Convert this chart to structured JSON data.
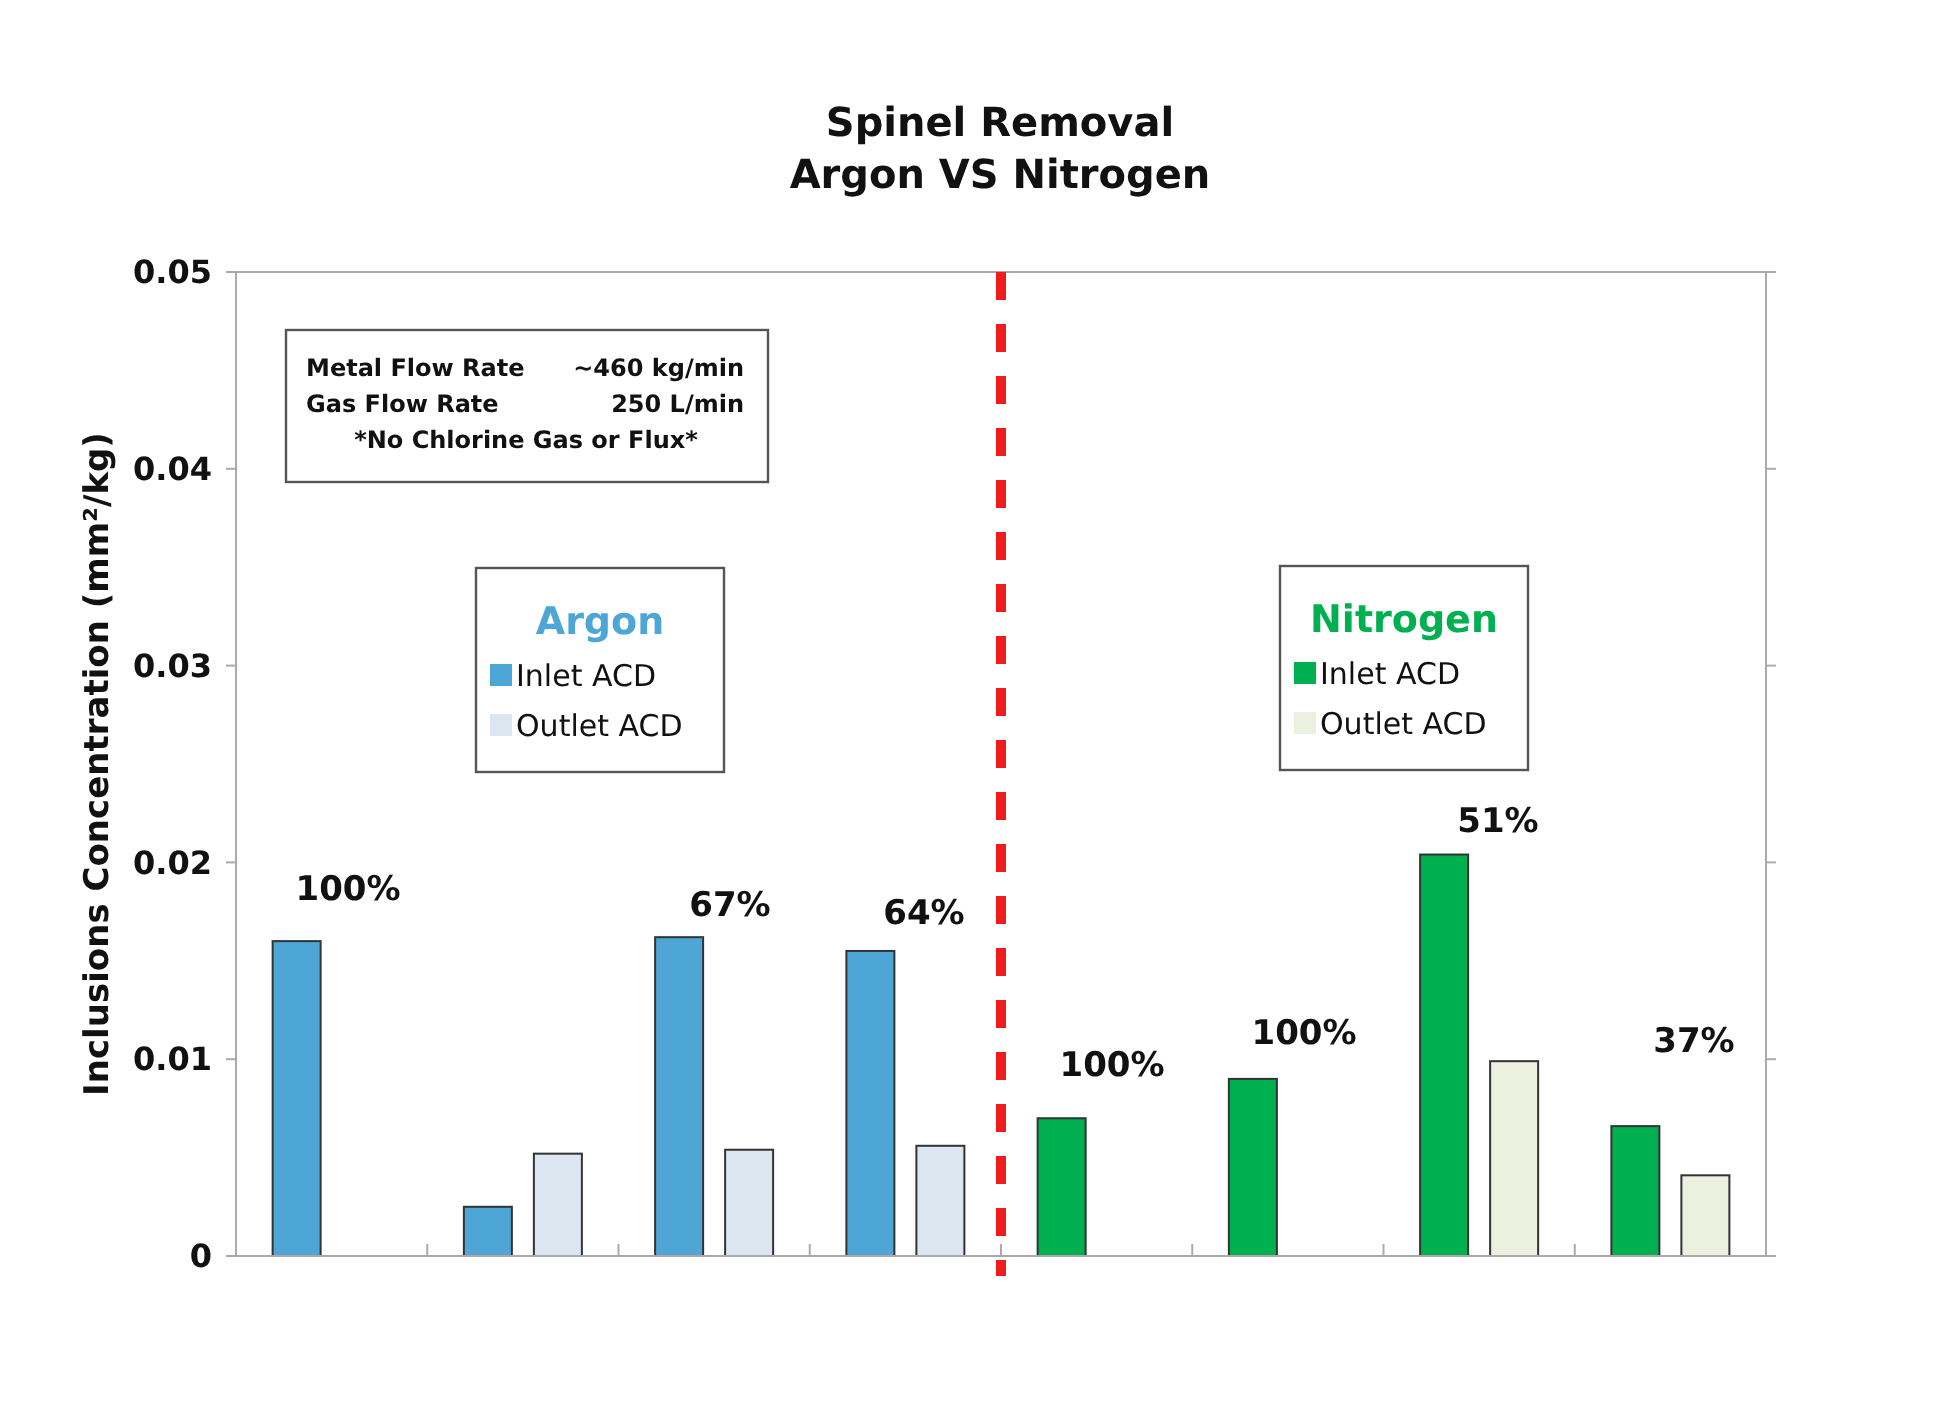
{
  "chart_data": {
    "type": "bar",
    "title": "Spinel Removal",
    "subtitle": "Argon VS Nitrogen",
    "ylabel": "Inclusions Concentration (mm²/kg)",
    "categories": [
      null,
      null,
      null,
      null,
      null,
      null,
      null,
      null
    ],
    "series": [
      {
        "name": "Inlet ACD",
        "color": "#4ea6d6",
        "values": [
          0.016,
          0.0025,
          0.0162,
          0.0155,
          null,
          null,
          null,
          null
        ]
      },
      {
        "name": "Outlet ACD",
        "color": "#dce6f0",
        "values": [
          null,
          0.0052,
          0.0054,
          0.0056,
          null,
          null,
          null,
          null
        ]
      },
      {
        "name": "Inlet ACD",
        "color": "#00b050",
        "values": [
          null,
          null,
          null,
          null,
          0.007,
          0.009,
          0.0204,
          0.0066
        ]
      },
      {
        "name": "Outlet ACD",
        "color": "#ebf1de",
        "values": [
          null,
          null,
          null,
          null,
          null,
          null,
          0.0099,
          0.0041
        ]
      }
    ],
    "ylim": [
      0,
      0.05
    ],
    "yticks": [
      0,
      0.01,
      0.02,
      0.03,
      0.04,
      0.05
    ],
    "grid": false,
    "legend": "top",
    "annotations": [
      "Metal Flow Rate",
      "~460 kg/min",
      "Gas Flow Rate",
      "250 L/min",
      "*No Chlorine Gas or Flux*",
      "Argon",
      "Nitrogen",
      "100%",
      "67%",
      "64%",
      "100%",
      "100%",
      "51%",
      "37%"
    ]
  }
}
